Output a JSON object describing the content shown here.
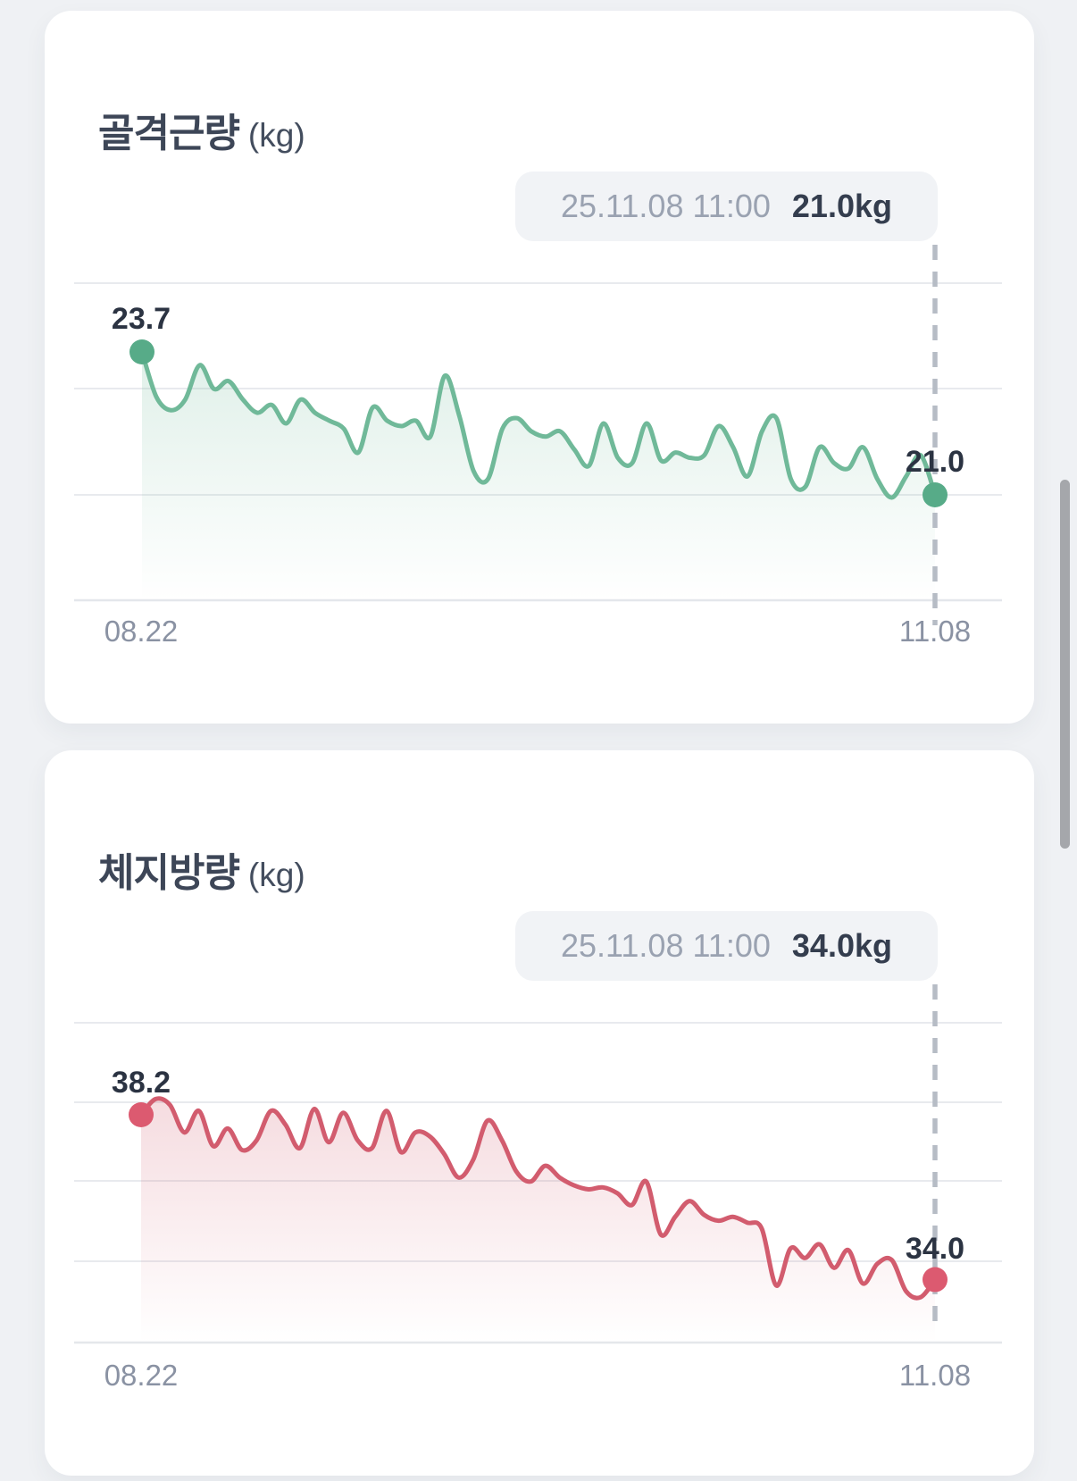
{
  "page": {
    "background_color": "#eff1f4"
  },
  "cards": [
    {
      "title": "골격근량",
      "unit": "(kg)",
      "tooltip": {
        "datetime": "25.11.08 11:00",
        "value": "21.0kg"
      },
      "start_point_label": "23.7",
      "end_point_label": "21.0",
      "x_axis_labels": {
        "start": "08.22",
        "end": "11.08"
      },
      "colors": {
        "line": "#70b999",
        "dot": "#57ab88",
        "fill_top": "rgba(112,185,153,0.26)",
        "fill_bottom": "rgba(112,185,153,0)"
      }
    },
    {
      "title": "체지방량",
      "unit": "(kg)",
      "tooltip": {
        "datetime": "25.11.08 11:00",
        "value": "34.0kg"
      },
      "start_point_label": "38.2",
      "end_point_label": "34.0",
      "x_axis_labels": {
        "start": "08.22",
        "end": "11.08"
      },
      "colors": {
        "line": "#d25c6e",
        "dot": "#dc5a70",
        "fill_top": "rgba(210,92,110,0.24)",
        "fill_bottom": "rgba(210,92,110,0)"
      }
    }
  ],
  "chart_data": [
    {
      "type": "area",
      "title": "골격근량 (kg)",
      "unit": "kg",
      "x_start": "08.22",
      "x_end": "11.08",
      "first_value": 23.7,
      "last_value": 21.0,
      "selected_reading": {
        "datetime": "25.11.08 11:00",
        "value_kg": 21.0
      },
      "ylim": [
        19,
        25
      ],
      "gridline_values": [
        25,
        23,
        21,
        19
      ],
      "grid": "horizontal-only",
      "legend": "none",
      "values": [
        23.7,
        22.85,
        22.6,
        22.8,
        23.45,
        23.0,
        23.15,
        22.8,
        22.55,
        22.7,
        22.35,
        22.8,
        22.55,
        22.4,
        22.25,
        21.8,
        22.65,
        22.4,
        22.3,
        22.4,
        22.1,
        23.25,
        22.5,
        21.45,
        21.3,
        22.25,
        22.45,
        22.2,
        22.1,
        22.2,
        21.85,
        21.55,
        22.35,
        21.7,
        21.6,
        22.35,
        21.65,
        21.8,
        21.7,
        21.75,
        22.3,
        21.9,
        21.35,
        22.2,
        22.45,
        21.3,
        21.15,
        21.9,
        21.6,
        21.5,
        21.9,
        21.3,
        20.95,
        21.35,
        21.75,
        21.0
      ]
    },
    {
      "type": "area",
      "title": "체지방량 (kg)",
      "unit": "kg",
      "x_start": "08.22",
      "x_end": "11.08",
      "first_value": 38.2,
      "last_value": 34.0,
      "selected_reading": {
        "datetime": "25.11.08 11:00",
        "value_kg": 34.0
      },
      "ylim": [
        32.4,
        40.5
      ],
      "gridline_values": [
        40.5,
        38.5,
        36.5,
        34.5,
        32.4
      ],
      "grid": "horizontal-only",
      "legend": "none",
      "values": [
        38.2,
        38.6,
        38.45,
        37.75,
        38.3,
        37.4,
        37.85,
        37.3,
        37.55,
        38.3,
        37.95,
        37.35,
        38.35,
        37.5,
        38.25,
        37.55,
        37.35,
        38.3,
        37.25,
        37.75,
        37.65,
        37.2,
        36.6,
        37.05,
        38.05,
        37.55,
        36.75,
        36.5,
        36.9,
        36.6,
        36.4,
        36.3,
        36.35,
        36.2,
        35.9,
        36.5,
        35.15,
        35.6,
        36.0,
        35.65,
        35.5,
        35.6,
        35.45,
        35.3,
        33.85,
        34.8,
        34.55,
        34.9,
        34.3,
        34.75,
        33.9,
        34.4,
        34.5,
        33.7,
        33.55,
        34.0
      ]
    }
  ],
  "scrollbar": {
    "visible": true
  }
}
